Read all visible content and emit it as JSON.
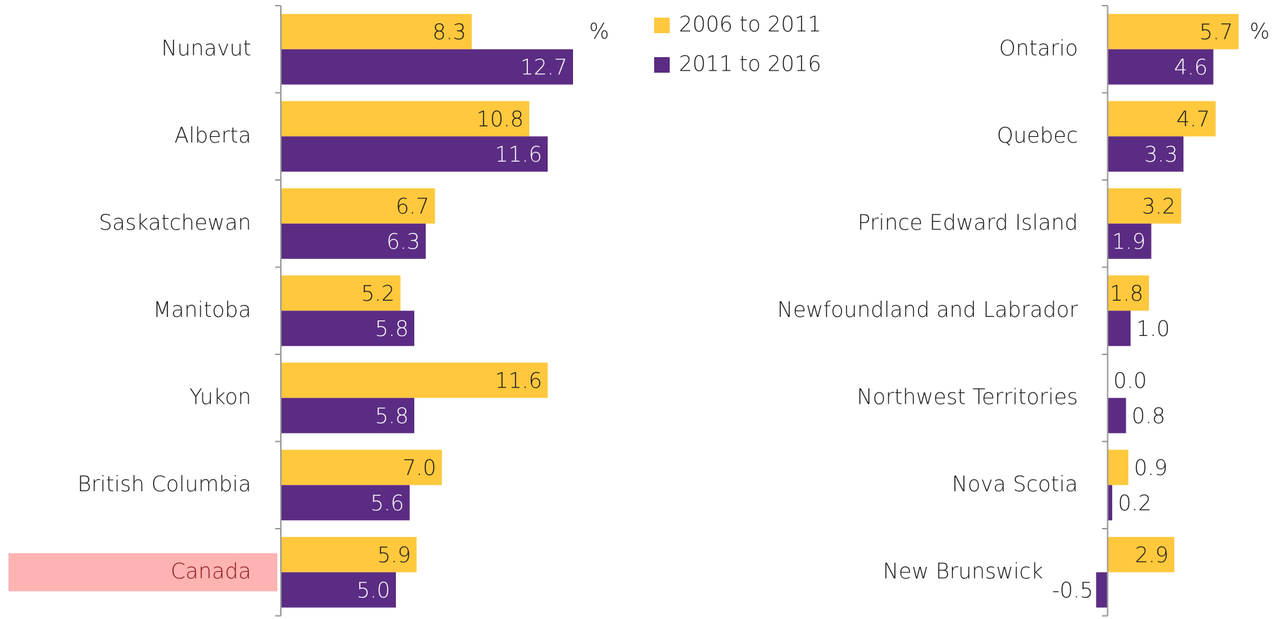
{
  "chart_data": [
    {
      "type": "hbar",
      "unit_label": "%",
      "categories": [
        "Nunavut",
        "Alberta",
        "Saskatchewan",
        "Manitoba",
        "Yukon",
        "British Columbia",
        "Canada"
      ],
      "series": [
        {
          "name": "2006 to 2011",
          "color": "#FFC83D",
          "values": [
            8.3,
            10.8,
            6.7,
            5.2,
            11.6,
            7.0,
            5.9
          ],
          "value_labels": [
            "8.3",
            "10.8",
            "6.7",
            "5.2",
            "11.6",
            "7.0",
            "5.9"
          ]
        },
        {
          "name": "2011 to 2016",
          "color": "#5B2C83",
          "values": [
            12.7,
            11.6,
            6.3,
            5.8,
            5.8,
            5.6,
            5.0
          ],
          "value_labels": [
            "12.7",
            "11.6",
            "6.3",
            "5.8",
            "5.8",
            "5.6",
            "5.0"
          ]
        }
      ],
      "xlim": [
        0,
        15
      ],
      "highlight": {
        "category": "Canada",
        "color": "#FFB3B3"
      }
    },
    {
      "type": "hbar",
      "unit_label": "%",
      "categories": [
        "Ontario",
        "Quebec",
        "Prince Edward Island",
        "Newfoundland and Labrador",
        "Northwest Territories",
        "Nova Scotia",
        "New Brunswick"
      ],
      "series": [
        {
          "name": "2006 to 2011",
          "color": "#FFC83D",
          "values": [
            5.7,
            4.7,
            3.2,
            1.8,
            0.0,
            0.9,
            2.9
          ],
          "value_labels": [
            "5.7",
            "4.7",
            "3.2",
            "1.8",
            "0.0",
            "0.9",
            "2.9"
          ]
        },
        {
          "name": "2011 to 2016",
          "color": "#5B2C83",
          "values": [
            4.6,
            3.3,
            1.9,
            1.0,
            0.8,
            0.2,
            -0.5
          ],
          "value_labels": [
            "4.6",
            "3.3",
            "1.9",
            "1.0",
            "0.8",
            "0.2",
            "-0.5"
          ]
        }
      ],
      "xlim": [
        -1,
        6
      ]
    }
  ]
}
